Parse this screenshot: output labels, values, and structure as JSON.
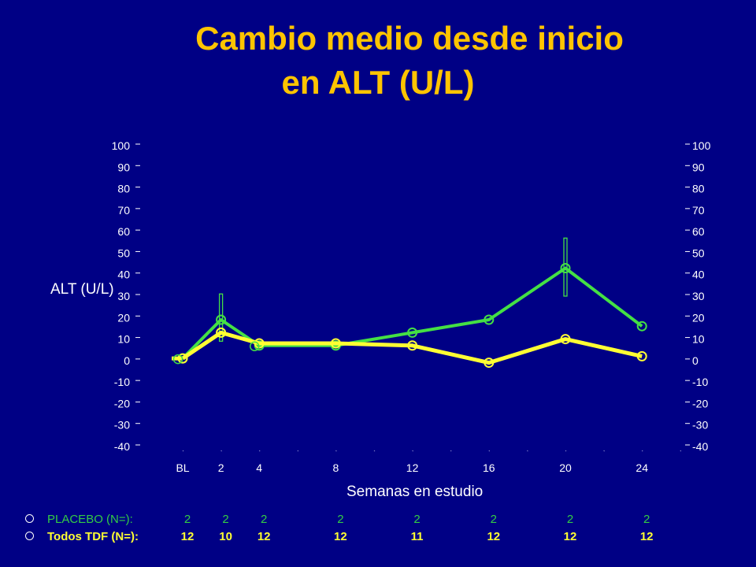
{
  "title_line1": "Cambio medio desde inicio",
  "title_line2": "en ALT (U/L)",
  "colors": {
    "background": "#000085",
    "title": "#ffc400",
    "placebo": "#44e044",
    "tdf": "#ffff33"
  },
  "chart_data": {
    "type": "line",
    "ylabel": "ALT (U/L)",
    "xlabel": "Semanas en estudio",
    "ylim": [
      -40,
      100
    ],
    "y_ticks": [
      "100",
      "90",
      "80",
      "70",
      "60",
      "50",
      "40",
      "30",
      "20",
      "10",
      "0",
      "-10",
      "-20",
      "-30",
      "-40"
    ],
    "x_ticks": [
      "BL",
      "2",
      "4",
      "8",
      "12",
      "16",
      "20",
      "24"
    ],
    "x": [
      0,
      2,
      4,
      8,
      12,
      16,
      20,
      24
    ],
    "series": [
      {
        "name": "PLACEBO",
        "values": [
          1,
          19,
          7,
          7,
          13,
          19,
          43,
          16
        ],
        "error_low": [
          1,
          9,
          7,
          7,
          13,
          19,
          30,
          16
        ],
        "error_high": [
          1,
          31,
          7,
          7,
          13,
          19,
          57,
          16
        ]
      },
      {
        "name": "Todos TDF",
        "values": [
          1,
          13,
          8,
          8,
          7,
          -1,
          10,
          2
        ]
      }
    ]
  },
  "n_table": {
    "placebo_label": "PLACEBO (N=):",
    "placebo_counts": [
      "2",
      "2",
      "2",
      "2",
      "2",
      "2",
      "2",
      "2"
    ],
    "tdf_label": "Todos TDF   (N=):",
    "tdf_counts": [
      "12",
      "10",
      "12",
      "12",
      "11",
      "12",
      "12",
      "12"
    ]
  }
}
